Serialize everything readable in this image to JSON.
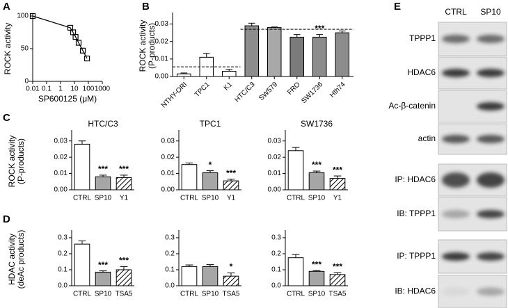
{
  "panel_labels": [
    "A",
    "B",
    "C",
    "D",
    "E"
  ],
  "chart_data": [
    {
      "type": "scatter",
      "ylabel": [
        "ROCK activity"
      ],
      "xlabel": "SP600125 (μM)",
      "log_x": true,
      "x": [
        0.01,
        5,
        8,
        12,
        20,
        40,
        80
      ],
      "values": [
        100,
        82,
        75,
        68,
        59,
        47,
        35
      ],
      "color": "#000000",
      "xlim": [
        0.01,
        1000
      ],
      "xticks": [
        0.01,
        0.1,
        1,
        10,
        100,
        1000
      ],
      "ylim": [
        0,
        100
      ],
      "yticks": [
        0,
        50,
        100
      ]
    },
    {
      "type": "bar",
      "ylabel": [
        "ROCK activity",
        "(P-products)"
      ],
      "categories": [
        "NTHY-ORI",
        "TPC1",
        "K1",
        "HTC/C3",
        "SW579",
        "FRO",
        "SW1736",
        "Hth74"
      ],
      "values": [
        0.0015,
        0.011,
        0.003,
        0.029,
        0.028,
        0.0225,
        0.0225,
        0.025
      ],
      "errors": [
        0.0005,
        0.0022,
        0.001,
        0.0015,
        0.0003,
        0.0015,
        0.0015,
        0.001
      ],
      "colors": [
        "#ffffff",
        "#ffffff",
        "#ffffff",
        "#8c8c8c",
        "#a8a8a8",
        "#7a7a7a",
        "#8c8c8c",
        "#8c8c8c"
      ],
      "ylim": [
        0,
        0.035
      ],
      "yticks": [
        {
          "value": 0,
          "label": "0.00"
        },
        {
          "value": 0.01,
          "label": "0.01"
        },
        {
          "value": 0.02,
          "label": "0.02"
        },
        {
          "value": 0.03,
          "label": "0.03"
        }
      ],
      "reference_lines": [
        {
          "value": 0.0055,
          "categories": [
            "NTHY-ORI",
            "K1"
          ]
        },
        {
          "value": 0.027,
          "categories": [
            "HTC/C3",
            "Hth74"
          ]
        }
      ],
      "annotations": [
        null,
        null,
        null,
        null,
        null,
        null,
        "***",
        null
      ]
    },
    {
      "type": "bar",
      "title": "HTC/C3",
      "ylabel": [
        "ROCK activity",
        "(P-products)"
      ],
      "categories": [
        "CTRL",
        "SP10",
        "Y1"
      ],
      "values": [
        0.028,
        0.008,
        0.0075
      ],
      "errors": [
        0.002,
        0.001,
        0.0015
      ],
      "colors": [
        "#ffffff",
        "#a6a6a6",
        "#ffffff"
      ],
      "hatch": [
        false,
        false,
        true
      ],
      "ylim": [
        0,
        0.035
      ],
      "yticks": [
        {
          "value": 0,
          "label": "0.00"
        },
        {
          "value": 0.01,
          "label": "0.01"
        },
        {
          "value": 0.02,
          "label": "0.02"
        },
        {
          "value": 0.03,
          "label": "0.03"
        }
      ],
      "annotations": [
        null,
        "***",
        "***"
      ]
    },
    {
      "type": "bar",
      "title": "TPC1",
      "categories": [
        "CTRL",
        "SP10",
        "Y1"
      ],
      "values": [
        0.0155,
        0.0105,
        0.0055
      ],
      "errors": [
        0.001,
        0.0012,
        0.001
      ],
      "colors": [
        "#ffffff",
        "#a6a6a6",
        "#ffffff"
      ],
      "hatch": [
        false,
        false,
        true
      ],
      "ylim": [
        0,
        0.035
      ],
      "yticks": [
        {
          "value": 0,
          "label": "0.00"
        },
        {
          "value": 0.01,
          "label": "0.01"
        },
        {
          "value": 0.02,
          "label": "0.02"
        },
        {
          "value": 0.03,
          "label": "0.03"
        }
      ],
      "annotations": [
        null,
        "*",
        "***"
      ]
    },
    {
      "type": "bar",
      "title": "SW1736",
      "categories": [
        "CTRL",
        "SP10",
        "Y1"
      ],
      "values": [
        0.024,
        0.0105,
        0.007
      ],
      "errors": [
        0.002,
        0.001,
        0.0015
      ],
      "colors": [
        "#ffffff",
        "#a6a6a6",
        "#ffffff"
      ],
      "hatch": [
        false,
        false,
        true
      ],
      "ylim": [
        0,
        0.035
      ],
      "yticks": [
        {
          "value": 0,
          "label": "0.00"
        },
        {
          "value": 0.01,
          "label": "0.01"
        },
        {
          "value": 0.02,
          "label": "0.02"
        },
        {
          "value": 0.03,
          "label": "0.03"
        }
      ],
      "annotations": [
        null,
        "***",
        "***"
      ]
    },
    {
      "type": "bar",
      "ylabel": [
        "HDAC activity",
        "(deAc products)"
      ],
      "categories": [
        "CTRL",
        "SP10",
        "TSA5"
      ],
      "values": [
        0.26,
        0.085,
        0.1
      ],
      "errors": [
        0.02,
        0.008,
        0.02
      ],
      "colors": [
        "#ffffff",
        "#a6a6a6",
        "#ffffff"
      ],
      "hatch": [
        false,
        false,
        true
      ],
      "ylim": [
        0,
        0.33
      ],
      "yticks": [
        {
          "value": 0,
          "label": "0.0"
        },
        0.1,
        0.2,
        0.3
      ],
      "annotations": [
        null,
        "***",
        "***"
      ]
    },
    {
      "type": "bar",
      "categories": [
        "CTRL",
        "SP10",
        "TSA5"
      ],
      "values": [
        0.12,
        0.12,
        0.06
      ],
      "errors": [
        0.01,
        0.012,
        0.02
      ],
      "colors": [
        "#ffffff",
        "#a6a6a6",
        "#ffffff"
      ],
      "hatch": [
        false,
        false,
        true
      ],
      "ylim": [
        0,
        0.33
      ],
      "yticks": [
        {
          "value": 0,
          "label": "0.0"
        },
        0.1,
        0.2,
        0.3
      ],
      "annotations": [
        null,
        null,
        "*"
      ]
    },
    {
      "type": "bar",
      "categories": [
        "CTRL",
        "SP10",
        "TSA5"
      ],
      "values": [
        0.175,
        0.09,
        0.07
      ],
      "errors": [
        0.02,
        0.005,
        0.012
      ],
      "colors": [
        "#ffffff",
        "#a6a6a6",
        "#ffffff"
      ],
      "hatch": [
        false,
        false,
        true
      ],
      "ylim": [
        0,
        0.33
      ],
      "yticks": [
        {
          "value": 0,
          "label": "0.0"
        },
        0.1,
        0.2,
        0.3
      ],
      "annotations": [
        null,
        "***",
        "***"
      ]
    }
  ],
  "blot": {
    "columns": [
      "CTRL",
      "SP10"
    ],
    "rows": [
      "TPPP1",
      "HDAC6",
      "Ac-β-catenin",
      "actin",
      "IP: HDAC6",
      "IB: TPPP1",
      "IP: TPPP1",
      "IB: HDAC6"
    ]
  }
}
